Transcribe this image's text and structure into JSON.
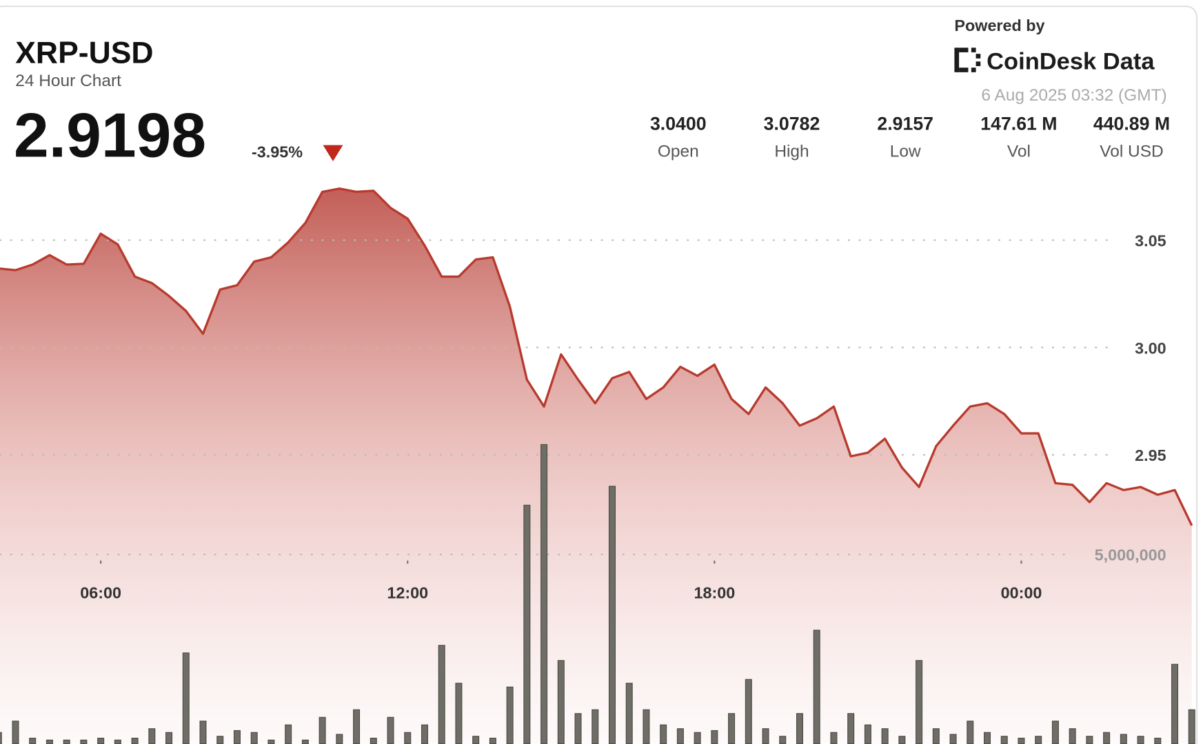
{
  "header": {
    "symbol": "XRP-USD",
    "subtitle": "24 Hour Chart",
    "price": "2.9198",
    "change": "-3.95%",
    "powered_by": "Powered by",
    "brand": "CoinDesk Data",
    "timestamp": "6 Aug 2025 03:32 (GMT)"
  },
  "stats": [
    {
      "value": "3.0400",
      "label": "Open"
    },
    {
      "value": "3.0782",
      "label": "High"
    },
    {
      "value": "2.9157",
      "label": "Low"
    },
    {
      "value": "147.61 M",
      "label": "Vol"
    },
    {
      "value": "440.89 M",
      "label": "Vol USD"
    }
  ],
  "chart_data": {
    "type": "line",
    "x": [
      "04:00",
      "04:20",
      "04:40",
      "05:00",
      "05:20",
      "05:40",
      "06:00",
      "06:20",
      "06:40",
      "07:00",
      "07:20",
      "07:40",
      "08:00",
      "08:20",
      "08:40",
      "09:00",
      "09:20",
      "09:40",
      "10:00",
      "10:20",
      "10:40",
      "11:00",
      "11:20",
      "11:40",
      "12:00",
      "12:20",
      "12:40",
      "13:00",
      "13:20",
      "13:40",
      "14:00",
      "14:20",
      "14:40",
      "15:00",
      "15:20",
      "15:40",
      "16:00",
      "16:20",
      "16:40",
      "17:00",
      "17:20",
      "17:40",
      "18:00",
      "18:20",
      "18:40",
      "19:00",
      "19:20",
      "19:40",
      "20:00",
      "20:20",
      "20:40",
      "21:00",
      "21:20",
      "21:40",
      "22:00",
      "22:20",
      "22:40",
      "23:00",
      "23:20",
      "23:40",
      "00:00",
      "00:20",
      "00:40",
      "01:00",
      "01:20",
      "01:40",
      "02:00",
      "02:20",
      "02:40",
      "03:00",
      "03:20"
    ],
    "xticks": [
      "06:00",
      "12:00",
      "18:00",
      "00:00"
    ],
    "series": [
      {
        "name": "Price",
        "color": "#b83a2e",
        "values": [
          3.0368,
          3.036,
          3.0386,
          3.043,
          3.0386,
          3.039,
          3.053,
          3.048,
          3.033,
          3.03,
          3.024,
          3.017,
          3.0064,
          3.027,
          3.029,
          3.04,
          3.042,
          3.049,
          3.058,
          3.0725,
          3.074,
          3.0725,
          3.073,
          3.065,
          3.06,
          3.0475,
          3.033,
          3.033,
          3.041,
          3.042,
          3.019,
          2.985,
          2.9725,
          2.9968,
          2.985,
          2.974,
          2.9857,
          2.9886,
          2.976,
          2.9814,
          2.991,
          2.9868,
          2.992,
          2.976,
          2.969,
          2.9814,
          2.974,
          2.9636,
          2.967,
          2.9725,
          2.9493,
          2.951,
          2.9575,
          2.944,
          2.935,
          2.954,
          2.9636,
          2.9725,
          2.974,
          2.969,
          2.96,
          2.96,
          2.9368,
          2.936,
          2.928,
          2.9368,
          2.9336,
          2.935,
          2.9314,
          2.9336,
          2.9171
        ]
      },
      {
        "name": "Volume",
        "color": "#6e6e66",
        "axis": "y2",
        "values": [
          300000,
          600000,
          150000,
          100000,
          100000,
          100000,
          150000,
          100000,
          150000,
          400000,
          300000,
          2400000,
          600000,
          200000,
          350000,
          300000,
          100000,
          500000,
          100000,
          700000,
          250000,
          900000,
          150000,
          700000,
          300000,
          500000,
          2600000,
          1600000,
          200000,
          150000,
          1500000,
          6300000,
          7900000,
          2200000,
          800000,
          900000,
          6800000,
          1600000,
          900000,
          500000,
          400000,
          300000,
          350000,
          800000,
          1700000,
          400000,
          200000,
          800000,
          3000000,
          300000,
          800000,
          500000,
          400000,
          200000,
          2200000,
          400000,
          250000,
          600000,
          300000,
          200000,
          150000,
          200000,
          600000,
          400000,
          200000,
          300000,
          250000,
          200000,
          150000,
          2100000,
          900000
        ]
      }
    ],
    "ylim": [
      2.8154,
      3.0832
    ],
    "yticks": [
      {
        "value": 3.05,
        "label": "3.05"
      },
      {
        "value": 3.0,
        "label": "3.00"
      },
      2.95
    ],
    "y2lim": [
      0,
      15180000
    ],
    "y2ticks": [
      {
        "value": 5000000,
        "label": "5,000,000"
      }
    ],
    "grid": true
  }
}
